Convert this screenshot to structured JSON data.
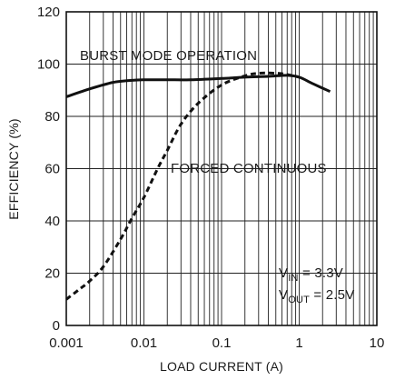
{
  "chart_data": {
    "type": "line",
    "title": "",
    "xlabel": "LOAD CURRENT (A)",
    "ylabel": "EFFICIENCY (%)",
    "x_scale": "log",
    "xlim": [
      0.001,
      10
    ],
    "ylim": [
      0,
      120
    ],
    "x_ticks": [
      0.001,
      0.01,
      0.1,
      1,
      10
    ],
    "x_tick_labels": [
      "0.001",
      "0.01",
      "0.1",
      "1",
      "10"
    ],
    "y_ticks": [
      0,
      20,
      40,
      60,
      80,
      100,
      120
    ],
    "y_tick_labels": [
      "0",
      "20",
      "40",
      "60",
      "80",
      "100",
      "120"
    ],
    "grid": true,
    "legend": "none",
    "series": [
      {
        "label": "BURST MODE OPERATION",
        "style": "solid",
        "x": [
          0.001,
          0.002,
          0.004,
          0.007,
          0.01,
          0.02,
          0.04,
          0.1,
          0.2,
          0.4,
          0.7,
          1.0,
          1.5,
          2.5
        ],
        "y": [
          87.5,
          90.5,
          93,
          93.8,
          94,
          94,
          94,
          94.5,
          95,
          95.3,
          95.7,
          95,
          92.5,
          89.5
        ]
      },
      {
        "label": "FORCED CONTINUOUS",
        "style": "dashed",
        "x": [
          0.001,
          0.0015,
          0.002,
          0.003,
          0.005,
          0.007,
          0.01,
          0.015,
          0.02,
          0.03,
          0.05,
          0.1,
          0.2,
          0.3,
          0.5,
          0.7,
          1.0
        ],
        "y": [
          10,
          14,
          17,
          22.5,
          33,
          41,
          49,
          60,
          67,
          77,
          85,
          92,
          95.5,
          96.5,
          96.5,
          96,
          95
        ]
      }
    ],
    "annotations": {
      "burst_label": "BURST MODE OPERATION",
      "forced_label": "FORCED CONTINUOUS",
      "vin": {
        "main": "V",
        "sub": "IN",
        "rest": " = 3.3V"
      },
      "vout": {
        "main": "V",
        "sub": "OUT",
        "rest": " = 2.5V"
      }
    }
  }
}
